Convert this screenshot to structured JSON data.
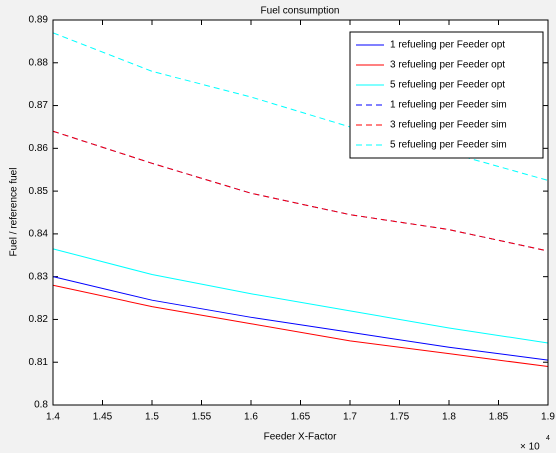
{
  "chart_data": {
    "type": "line",
    "title": "Fuel consumption",
    "x_label": "Feeder X-Factor",
    "y_label": "Fuel / reference fuel",
    "x_scale_base": "× 10",
    "x_scale_exponent": "4",
    "x": [
      1.4,
      1.5,
      1.6,
      1.7,
      1.8,
      1.9
    ],
    "series": [
      {
        "name": "1 refueling per Feeder opt",
        "color": "#0000ff",
        "line_style": "solid",
        "values": [
          0.83,
          0.8245,
          0.8205,
          0.817,
          0.8135,
          0.8105
        ]
      },
      {
        "name": "3 refueling per Feeder opt",
        "color": "#ff0000",
        "line_style": "solid",
        "values": [
          0.828,
          0.823,
          0.819,
          0.815,
          0.812,
          0.809
        ]
      },
      {
        "name": "5 refueling per Feeder opt",
        "color": "#00ffff",
        "line_style": "solid",
        "values": [
          0.8365,
          0.8305,
          0.826,
          0.822,
          0.818,
          0.8145
        ]
      },
      {
        "name": "1 refueling per Feeder sim",
        "color": "#0000ff",
        "line_style": "dashed",
        "values": [
          0.864,
          0.8565,
          0.8495,
          0.8445,
          0.841,
          0.836
        ]
      },
      {
        "name": "3 refueling per Feeder sim",
        "color": "#ff0000",
        "line_style": "dashed",
        "values": [
          0.864,
          0.8565,
          0.8495,
          0.8445,
          0.841,
          0.836
        ]
      },
      {
        "name": "5 refueling per Feeder sim",
        "color": "#00ffff",
        "line_style": "dashed",
        "values": [
          0.887,
          0.878,
          0.872,
          0.865,
          0.859,
          0.8525
        ]
      }
    ],
    "xlim": [
      1.4,
      1.9
    ],
    "xticks": [
      1.4,
      1.45,
      1.5,
      1.55,
      1.6,
      1.65,
      1.7,
      1.75,
      1.8,
      1.85,
      1.9
    ],
    "ylim": [
      0.8,
      0.89
    ],
    "yticks": [
      0.8,
      0.81,
      0.82,
      0.83,
      0.84,
      0.85,
      0.86,
      0.87,
      0.88,
      0.89
    ],
    "grid": false,
    "legend_position": "top-right"
  }
}
